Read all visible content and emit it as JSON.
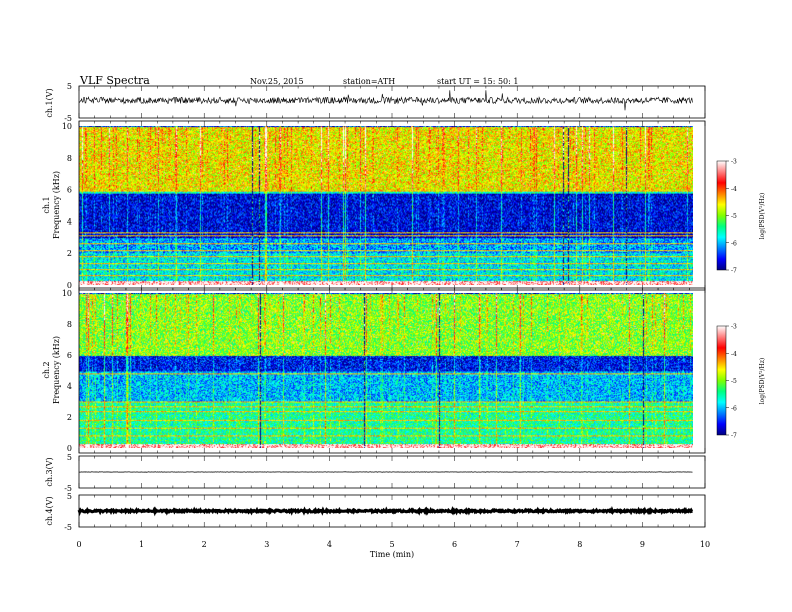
{
  "header": {
    "title": "VLF  Spectra",
    "date": "Nov.25, 2015",
    "station": "station=ATH",
    "start": "start  UT  =    15: 50: 1"
  },
  "axes": {
    "time_label": "Time  (min)",
    "ch1_label": "ch.1(V)",
    "ch3_label": "ch.3(V)",
    "ch4_label": "ch.4(V)",
    "spec1_label": "ch.1",
    "spec2_label": "ch.2",
    "freq_label": "Frequency  (kHz)",
    "colorbar_label": "log(PSD(V²/Hz)",
    "ts_ticks": [
      "5",
      "-5"
    ]
  },
  "colors": {
    "scale": [
      "#000080",
      "#0000ff",
      "#0080ff",
      "#00ffff",
      "#00ff80",
      "#80ff00",
      "#ffff00",
      "#ff8000",
      "#ff0000",
      "#ff8080",
      "#ffffff"
    ]
  },
  "chart_data": [
    {
      "type": "line",
      "name": "ch1-timeseries",
      "ylabel": "ch.1(V)",
      "ylim": [
        -5,
        5
      ],
      "xlim": [
        0,
        10
      ],
      "x_ticks": [
        0,
        1,
        2,
        3,
        4,
        5,
        6,
        7,
        8,
        9,
        10
      ],
      "y_ticks": [
        5,
        -5
      ],
      "data_extent_min": 9.8,
      "baseline": 0.5,
      "noise_amplitude": 1.0
    },
    {
      "type": "heatmap",
      "name": "ch1-spectrogram",
      "ylabel": "Frequency  (kHz)",
      "xlim": [
        0,
        10
      ],
      "ylim": [
        0,
        10
      ],
      "x_ticks": [
        0,
        1,
        2,
        3,
        4,
        5,
        6,
        7,
        8,
        9,
        10
      ],
      "y_ticks": [
        0,
        2,
        4,
        6,
        8,
        10
      ],
      "data_extent_min": 9.8,
      "colorbar": {
        "label": "log(PSD(V²/Hz)",
        "range": [
          -7,
          -3
        ],
        "ticks": [
          -3,
          -4,
          -5,
          -6,
          -7
        ]
      },
      "bands_khz": [
        {
          "from": 6.0,
          "to": 10.0,
          "level": -4.6
        },
        {
          "from": 5.8,
          "to": 6.0,
          "level": -5.6
        },
        {
          "from": 3.0,
          "to": 5.8,
          "level": -6.7
        },
        {
          "from": 2.0,
          "to": 3.0,
          "level": -6.1
        },
        {
          "from": 0.3,
          "to": 2.0,
          "level": -5.8
        },
        {
          "from": 0.0,
          "to": 0.3,
          "level": -3.2
        }
      ],
      "lines_khz": [
        0.6,
        1.0,
        1.4,
        1.8,
        2.2,
        2.6,
        3.1,
        3.3,
        5.95
      ]
    },
    {
      "type": "heatmap",
      "name": "ch2-spectrogram",
      "ylabel": "Frequency  (kHz)",
      "xlim": [
        0,
        10
      ],
      "ylim": [
        0,
        10
      ],
      "x_ticks": [
        0,
        1,
        2,
        3,
        4,
        5,
        6,
        7,
        8,
        9,
        10
      ],
      "y_ticks": [
        0,
        2,
        4,
        6,
        8,
        10
      ],
      "data_extent_min": 9.8,
      "colorbar": {
        "label": "log(PSD(V²/Hz)",
        "range": [
          -7,
          -3
        ],
        "ticks": [
          -3,
          -4,
          -5,
          -6,
          -7
        ]
      },
      "bands_khz": [
        {
          "from": 6.0,
          "to": 10.0,
          "level": -5.0
        },
        {
          "from": 5.0,
          "to": 6.0,
          "level": -6.6
        },
        {
          "from": 3.0,
          "to": 5.0,
          "level": -6.0
        },
        {
          "from": 0.3,
          "to": 3.0,
          "level": -5.5
        },
        {
          "from": 0.0,
          "to": 0.3,
          "level": -3.2
        }
      ],
      "lines_khz": [
        0.8,
        1.3,
        1.8,
        2.4,
        2.7,
        3.0,
        4.8
      ]
    },
    {
      "type": "line",
      "name": "ch3-timeseries",
      "ylabel": "ch.3(V)",
      "ylim": [
        -5,
        5
      ],
      "xlim": [
        0,
        10
      ],
      "x_ticks": [
        0,
        1,
        2,
        3,
        4,
        5,
        6,
        7,
        8,
        9,
        10
      ],
      "y_ticks": [
        5,
        -5
      ],
      "data_extent_min": 9.8,
      "baseline": 0.0,
      "noise_amplitude": 0.05
    },
    {
      "type": "line",
      "name": "ch4-timeseries",
      "ylabel": "ch.4(V)",
      "xlabel": "Time  (min)",
      "ylim": [
        -5,
        5
      ],
      "xlim": [
        0,
        10
      ],
      "x_ticks": [
        0,
        1,
        2,
        3,
        4,
        5,
        6,
        7,
        8,
        9,
        10
      ],
      "y_ticks": [
        5,
        -5
      ],
      "data_extent_min": 9.8,
      "baseline": 0.0,
      "noise_amplitude": 0.3
    }
  ]
}
